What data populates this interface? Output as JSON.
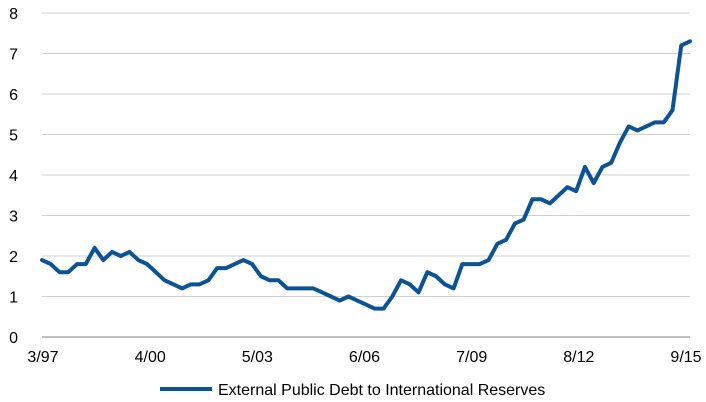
{
  "chart_data": {
    "type": "line",
    "title": "",
    "xlabel": "",
    "ylabel": "",
    "ylim": [
      0,
      8
    ],
    "yticks": [
      "0",
      "1",
      "2",
      "3",
      "4",
      "5",
      "6",
      "7",
      "8"
    ],
    "grid": true,
    "legend_position": "bottom",
    "x_tick_labels": [
      "3/97",
      "4/00",
      "5/03",
      "6/06",
      "7/09",
      "8/12",
      "9/15"
    ],
    "series": [
      {
        "name": "External Public Debt to International Reserves",
        "color": "#0b5394",
        "values": [
          1.9,
          1.8,
          1.6,
          1.6,
          1.8,
          1.8,
          2.2,
          1.9,
          2.1,
          2.0,
          2.1,
          1.9,
          1.8,
          1.6,
          1.4,
          1.3,
          1.2,
          1.3,
          1.3,
          1.4,
          1.7,
          1.7,
          1.8,
          1.9,
          1.8,
          1.5,
          1.4,
          1.4,
          1.2,
          1.2,
          1.2,
          1.2,
          1.1,
          1.0,
          0.9,
          1.0,
          0.9,
          0.8,
          0.7,
          0.7,
          1.0,
          1.4,
          1.3,
          1.1,
          1.6,
          1.5,
          1.3,
          1.2,
          1.8,
          1.8,
          1.8,
          1.9,
          2.3,
          2.4,
          2.8,
          2.9,
          3.4,
          3.4,
          3.3,
          3.5,
          3.7,
          3.6,
          4.2,
          3.8,
          4.2,
          4.3,
          4.8,
          5.2,
          5.1,
          5.2,
          5.3,
          5.3,
          5.6,
          7.2,
          7.3
        ]
      }
    ]
  }
}
